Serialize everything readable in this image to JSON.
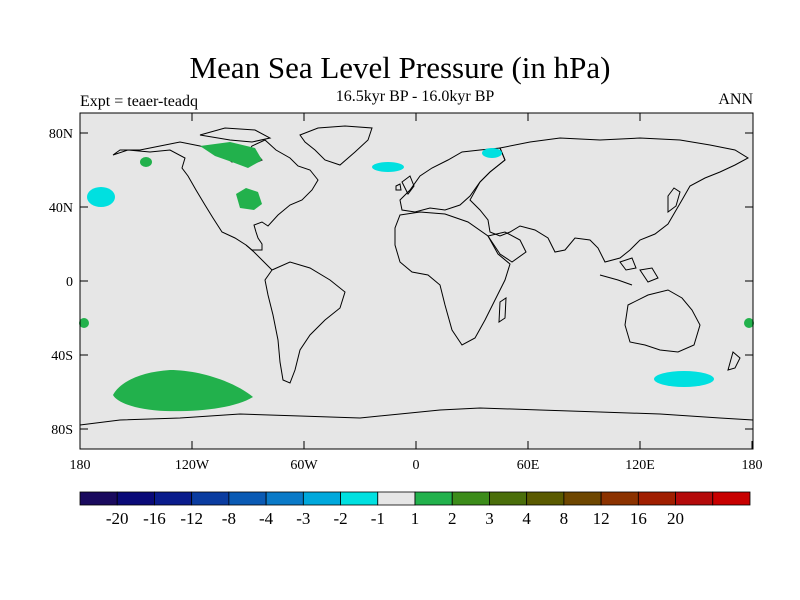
{
  "title": "Mean Sea Level Pressure (in hPa)",
  "subtitle": "16.5kyr BP - 16.0kyr BP",
  "expt_label": "Expt = teaer-teadq",
  "season": "ANN",
  "map": {
    "lon_ticks": [
      "180",
      "120W",
      "60W",
      "0",
      "60E",
      "120E",
      "180"
    ],
    "lat_ticks": [
      "80N",
      "40N",
      "0",
      "40S",
      "80S"
    ],
    "ocean_color": "#e6e6e6",
    "coast_color": "#000000"
  },
  "anomalies": [
    {
      "name": "south-pacific-positive",
      "level": "1 to 2",
      "color": "#22b14c"
    },
    {
      "name": "southern-indian-ocean-negative",
      "level": "-1 to -2",
      "color": "#00e0e0"
    },
    {
      "name": "north-pacific-negative",
      "level": "-1 to -2",
      "color": "#00e0e0"
    },
    {
      "name": "canada-positive",
      "level": "1 to 2",
      "color": "#22b14c"
    },
    {
      "name": "great-lakes-positive",
      "level": "1 to 2",
      "color": "#22b14c"
    },
    {
      "name": "north-atlantic-negative",
      "level": "-1 to -2",
      "color": "#00e0e0"
    },
    {
      "name": "barents-sea-negative",
      "level": "-1 to -2",
      "color": "#00e0e0"
    }
  ],
  "colorbar": {
    "colors": [
      "#1a0a5e",
      "#0a0a78",
      "#0a1c8c",
      "#0a3ca0",
      "#0a5ab4",
      "#0a7ac8",
      "#00a8dc",
      "#00e0e0",
      "#e6e6e6",
      "#22b14c",
      "#3c8c1a",
      "#4a6e0a",
      "#5a5a00",
      "#6e4600",
      "#8c3200",
      "#a01e00",
      "#b40a0a",
      "#c80000"
    ],
    "labels": [
      "-20",
      "-16",
      "-12",
      "-8",
      "-4",
      "-3",
      "-2",
      "-1",
      "1",
      "2",
      "3",
      "4",
      "8",
      "12",
      "16",
      "20"
    ]
  }
}
